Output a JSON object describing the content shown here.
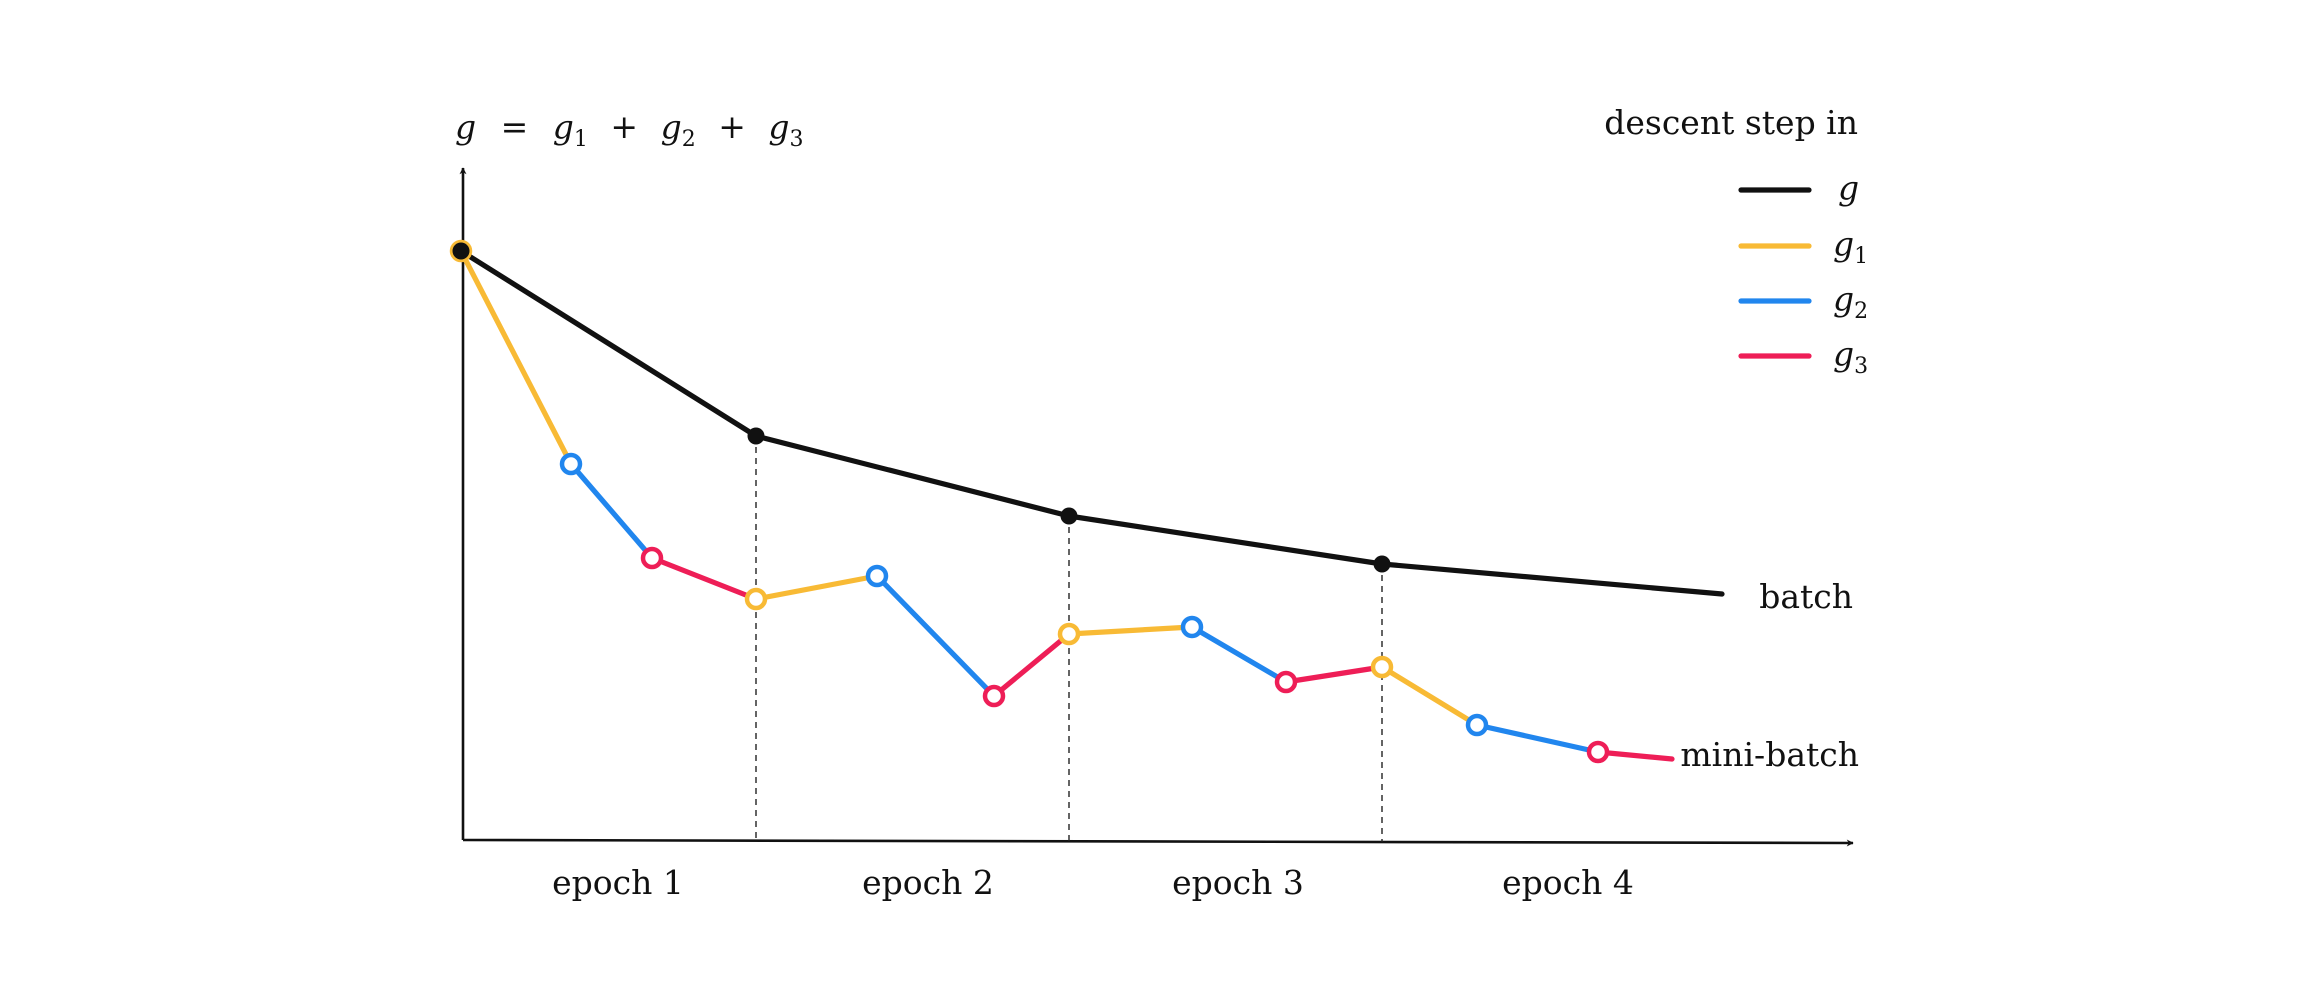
{
  "title": {
    "lhs": "g",
    "eq": "=",
    "plus": "+",
    "terms": [
      {
        "var": "g",
        "sub": "1"
      },
      {
        "var": "g",
        "sub": "2"
      },
      {
        "var": "g",
        "sub": "3"
      }
    ]
  },
  "legend": {
    "title": "descent step in",
    "entries": [
      {
        "var": "g",
        "sub": "",
        "color": "#111111"
      },
      {
        "var": "g",
        "sub": "1",
        "color": "#F8BA35"
      },
      {
        "var": "g",
        "sub": "2",
        "color": "#2186EE"
      },
      {
        "var": "g",
        "sub": "3",
        "color": "#EE1E57"
      }
    ]
  },
  "epochs": [
    "epoch 1",
    "epoch 2",
    "epoch 3",
    "epoch 4"
  ],
  "curves": {
    "batch": {
      "label": "batch",
      "color": "#111111"
    },
    "minibatch": {
      "label": "mini-batch"
    }
  },
  "colors": {
    "g": "#111111",
    "g1": "#F8BA35",
    "g2": "#2186EE",
    "g3": "#EE1E57"
  }
}
